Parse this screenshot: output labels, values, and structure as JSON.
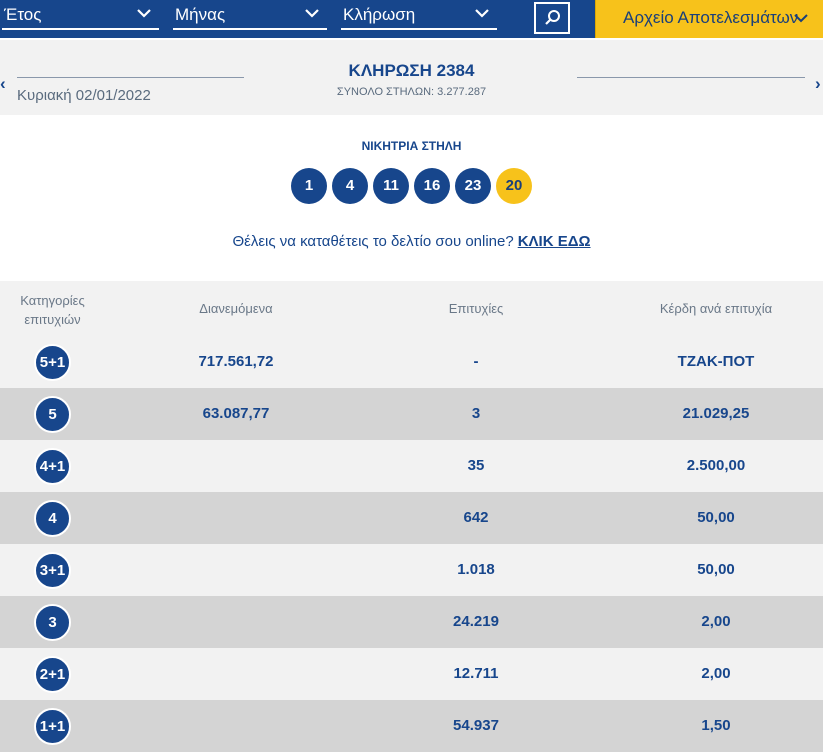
{
  "topbar": {
    "year_label": "Έτος",
    "month_label": "Μήνας",
    "draw_label": "Κλήρωση",
    "archive_label": "Αρχείο Αποτελεσμάτων"
  },
  "header": {
    "date": "Κυριακή 02/01/2022",
    "title": "ΚΛΗΡΩΣΗ 2384",
    "subtitle": "ΣΥΝΟΛΟ ΣΤΗΛΩΝ: 3.277.287"
  },
  "winning": {
    "title": "ΝΙΚΗΤΡΙΑ ΣΤΗΛΗ",
    "numbers": [
      "1",
      "4",
      "11",
      "16",
      "23"
    ],
    "joker": "20"
  },
  "promo": {
    "text": "Θέλεις να καταθέτεις το δελτίο σου online?",
    "link": "ΚΛΙΚ ΕΔΩ"
  },
  "table": {
    "headers": {
      "category_line1": "Κατηγορίες",
      "category_line2": "επιτυχιών",
      "pool": "Διανεμόμενα",
      "winners": "Επιτυχίες",
      "prize": "Κέρδη ανά επιτυχία"
    },
    "rows": [
      {
        "category": "5+1",
        "pool": "717.561,72",
        "winners": "-",
        "prize": "ΤΖΑΚ-ΠΟΤ"
      },
      {
        "category": "5",
        "pool": "63.087,77",
        "winners": "3",
        "prize": "21.029,25"
      },
      {
        "category": "4+1",
        "pool": "",
        "winners": "35",
        "prize": "2.500,00"
      },
      {
        "category": "4",
        "pool": "",
        "winners": "642",
        "prize": "50,00"
      },
      {
        "category": "3+1",
        "pool": "",
        "winners": "1.018",
        "prize": "50,00"
      },
      {
        "category": "3",
        "pool": "",
        "winners": "24.219",
        "prize": "2,00"
      },
      {
        "category": "2+1",
        "pool": "",
        "winners": "12.711",
        "prize": "2,00"
      },
      {
        "category": "1+1",
        "pool": "",
        "winners": "54.937",
        "prize": "1,50"
      }
    ]
  },
  "colors": {
    "brand_blue": "#17468c",
    "accent_yellow": "#f7c21b",
    "row_light": "#f2f2f2",
    "row_dark": "#d4d4d4"
  }
}
